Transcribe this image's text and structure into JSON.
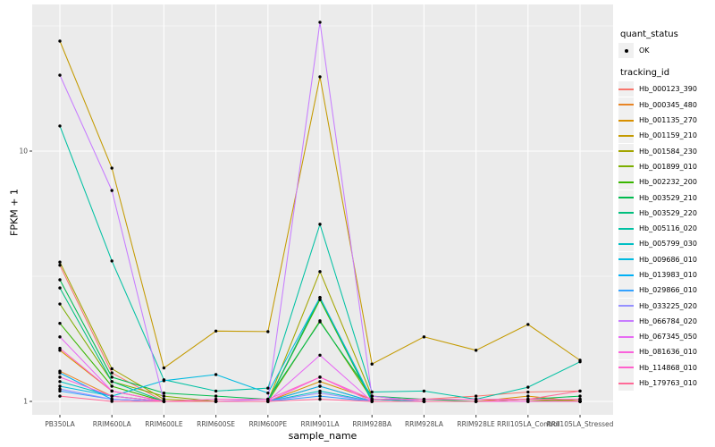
{
  "legend": {
    "quant_status_title": "quant_status",
    "quant_status_items": [
      {
        "label": "OK",
        "key_icon": "point"
      }
    ],
    "tracking_id_title": "tracking_id"
  },
  "colors": {
    "panel_background": "#EBEBEB",
    "gridline": "#FFFFFF",
    "point": "#000000",
    "tick_text": "#4D4D4D",
    "axis_title_text": "#000000",
    "legend_key_background": "#F0F0F0"
  },
  "chart_data": {
    "type": "line",
    "title": "",
    "xlabel": "sample_name",
    "ylabel": "FPKM + 1",
    "y_scale": "log10",
    "ylim": [
      0.9,
      38
    ],
    "y_ticks": [
      1,
      10
    ],
    "y_minor_gridlines": [
      3.1623,
      31.623
    ],
    "grid": true,
    "legend_position": "right",
    "point_marker": "black dot on every value (quant_status = OK)",
    "categories": [
      "PB350LA",
      "RRIM600LA",
      "RRIM600LE",
      "RRIM600SE",
      "RRIM600PE",
      "RRIM901LA",
      "RRIM928BA",
      "RRIM928LA",
      "RRIM928LE",
      "RRII105LA_Control",
      "RRII105LA_Stressed"
    ],
    "series": [
      {
        "name": "Hb_000123_390",
        "color": "#F8766D",
        "values": [
          3.5,
          1.3,
          1.0,
          1.0,
          1.0,
          2.6,
          1.02,
          1.02,
          1.05,
          1.09,
          1.1
        ]
      },
      {
        "name": "Hb_000345_480",
        "color": "#E88526",
        "values": [
          1.32,
          1.05,
          1.0,
          1.0,
          1.0,
          1.15,
          1.0,
          1.0,
          1.0,
          1.0,
          1.02
        ]
      },
      {
        "name": "Hb_001135_270",
        "color": "#D89000",
        "values": [
          1.6,
          1.1,
          1.0,
          1.0,
          1.0,
          1.2,
          1.02,
          1.0,
          1.0,
          1.05,
          1.0
        ]
      },
      {
        "name": "Hb_001159_210",
        "color": "#C49A00",
        "values": [
          27.5,
          8.55,
          1.36,
          1.91,
          1.9,
          19.8,
          1.41,
          1.81,
          1.6,
          2.03,
          1.46
        ]
      },
      {
        "name": "Hb_001584_230",
        "color": "#A3A500",
        "values": [
          3.6,
          1.35,
          1.02,
          1.0,
          1.0,
          3.3,
          1.05,
          1.0,
          1.0,
          1.02,
          1.0
        ]
      },
      {
        "name": "Hb_001899_010",
        "color": "#7CAE00",
        "values": [
          2.45,
          1.2,
          1.05,
          1.0,
          1.0,
          2.1,
          1.02,
          1.0,
          1.0,
          1.0,
          1.02
        ]
      },
      {
        "name": "Hb_002232_200",
        "color": "#39B600",
        "values": [
          2.05,
          1.15,
          1.0,
          1.0,
          1.0,
          2.55,
          1.0,
          1.0,
          1.0,
          1.0,
          1.0
        ]
      },
      {
        "name": "Hb_003529_210",
        "color": "#00BB4E",
        "values": [
          3.06,
          1.25,
          1.08,
          1.05,
          1.02,
          2.08,
          1.05,
          1.02,
          1.0,
          1.02,
          1.05
        ]
      },
      {
        "name": "Hb_003529_220",
        "color": "#00BF7D",
        "values": [
          2.84,
          1.2,
          1.0,
          1.0,
          1.0,
          2.6,
          1.0,
          1.0,
          1.0,
          1.0,
          1.0
        ]
      },
      {
        "name": "Hb_005116_020",
        "color": "#00C1A3",
        "values": [
          12.6,
          3.64,
          1.22,
          1.1,
          1.13,
          5.1,
          1.09,
          1.1,
          1.02,
          1.14,
          1.44
        ]
      },
      {
        "name": "Hb_005799_030",
        "color": "#00BFC4",
        "values": [
          1.2,
          1.05,
          1.0,
          1.0,
          1.0,
          1.1,
          1.0,
          1.0,
          1.0,
          1.0,
          1.0
        ]
      },
      {
        "name": "Hb_009686_010",
        "color": "#00BAE0",
        "values": [
          1.15,
          1.05,
          1.21,
          1.28,
          1.08,
          2.6,
          1.02,
          1.0,
          1.0,
          1.0,
          1.0
        ]
      },
      {
        "name": "Hb_013983_010",
        "color": "#00B0F6",
        "values": [
          1.3,
          1.02,
          1.0,
          1.0,
          1.0,
          1.15,
          1.0,
          1.0,
          1.0,
          1.0,
          1.0
        ]
      },
      {
        "name": "Hb_029866_010",
        "color": "#35A2FF",
        "values": [
          1.1,
          1.02,
          1.0,
          1.0,
          1.0,
          1.05,
          1.0,
          1.0,
          1.0,
          1.0,
          1.0
        ]
      },
      {
        "name": "Hb_033225_020",
        "color": "#9590FF",
        "values": [
          1.12,
          1.02,
          1.0,
          1.0,
          1.0,
          1.08,
          1.0,
          1.0,
          1.0,
          1.0,
          1.0
        ]
      },
      {
        "name": "Hb_066784_020",
        "color": "#C77CFF",
        "values": [
          20.1,
          6.96,
          1.0,
          1.0,
          1.02,
          32.7,
          1.05,
          1.0,
          1.0,
          1.0,
          1.0
        ]
      },
      {
        "name": "Hb_067345_050",
        "color": "#E76BF3",
        "values": [
          1.81,
          1.1,
          1.0,
          1.0,
          1.0,
          1.53,
          1.0,
          1.0,
          1.0,
          1.0,
          1.0
        ]
      },
      {
        "name": "Hb_081636_010",
        "color": "#FA62DB",
        "values": [
          1.25,
          1.05,
          1.0,
          1.0,
          1.0,
          1.25,
          1.0,
          1.0,
          1.0,
          1.0,
          1.0
        ]
      },
      {
        "name": "Hb_114868_010",
        "color": "#FF61CC",
        "values": [
          1.63,
          1.1,
          1.0,
          1.02,
          1.02,
          1.25,
          1.02,
          1.02,
          1.02,
          1.02,
          1.02
        ]
      },
      {
        "name": "Hb_179763_010",
        "color": "#FF6A98",
        "values": [
          1.05,
          1.0,
          1.0,
          1.0,
          1.0,
          1.02,
          1.0,
          1.0,
          1.0,
          1.02,
          1.1
        ]
      }
    ]
  }
}
